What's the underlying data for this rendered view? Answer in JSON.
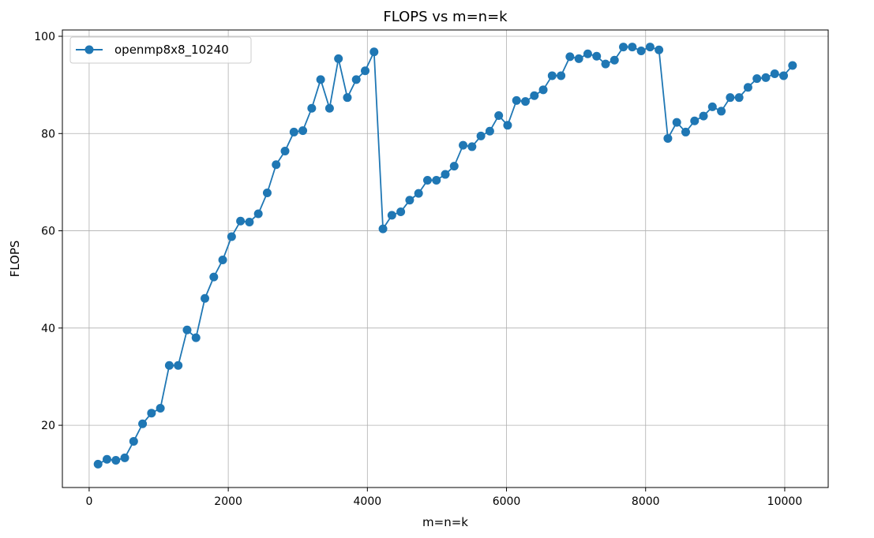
{
  "chart_data": {
    "type": "line",
    "title": "FLOPS vs m=n=k",
    "xlabel": "m=n=k",
    "ylabel": "FLOPS",
    "xlim": [
      -385,
      10625
    ],
    "ylim": [
      7.2,
      101.3
    ],
    "xticks": [
      0,
      2000,
      4000,
      6000,
      8000,
      10000
    ],
    "yticks": [
      20,
      40,
      60,
      80,
      100
    ],
    "grid": true,
    "legend_position": "top-left",
    "series": [
      {
        "name": "openmp8x8_10240",
        "color": "#1f77b4",
        "marker": "circle",
        "x": [
          128,
          256,
          384,
          512,
          640,
          768,
          896,
          1024,
          1152,
          1280,
          1408,
          1536,
          1664,
          1792,
          1920,
          2048,
          2176,
          2304,
          2432,
          2560,
          2688,
          2816,
          2944,
          3072,
          3200,
          3328,
          3456,
          3584,
          3712,
          3840,
          3968,
          4096,
          4224,
          4352,
          4480,
          4608,
          4736,
          4864,
          4992,
          5120,
          5248,
          5376,
          5504,
          5632,
          5760,
          5888,
          6016,
          6144,
          6272,
          6400,
          6528,
          6656,
          6784,
          6912,
          7040,
          7168,
          7296,
          7424,
          7552,
          7680,
          7808,
          7936,
          8064,
          8192,
          8320,
          8448,
          8576,
          8704,
          8832,
          8960,
          9088,
          9216,
          9344,
          9472,
          9600,
          9728,
          9856,
          9984,
          10112
        ],
        "y": [
          12.0,
          13.0,
          12.8,
          13.3,
          16.7,
          20.3,
          22.5,
          23.5,
          32.3,
          32.3,
          39.6,
          38.0,
          46.1,
          50.5,
          54.0,
          58.8,
          62.0,
          61.8,
          63.5,
          67.8,
          73.6,
          76.4,
          80.3,
          80.6,
          85.2,
          91.1,
          85.2,
          95.4,
          87.4,
          91.1,
          92.9,
          96.8,
          60.4,
          63.2,
          63.9,
          66.3,
          67.7,
          70.4,
          70.4,
          71.6,
          73.3,
          77.6,
          77.3,
          79.5,
          80.5,
          83.7,
          81.7,
          86.8,
          86.6,
          87.8,
          89.0,
          91.9,
          91.9,
          95.8,
          95.4,
          96.4,
          95.9,
          94.3,
          95.1,
          97.8,
          97.8,
          97.0,
          97.8,
          97.2,
          79.0,
          82.3,
          80.3,
          82.6,
          83.6,
          85.5,
          84.6,
          87.4,
          87.4,
          89.5,
          91.3,
          91.5,
          92.3,
          91.9,
          94.0
        ]
      }
    ]
  }
}
